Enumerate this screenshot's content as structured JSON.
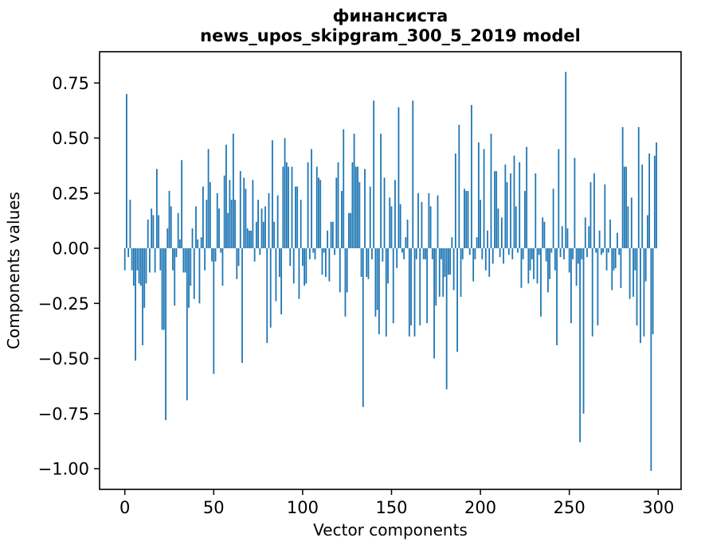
{
  "title": {
    "line1": "финансиста",
    "line2": "news_upos_skipgram_300_5_2019 model"
  },
  "axes": {
    "x_label": "Vector components",
    "y_label": "Components values",
    "x_ticks": [
      {
        "label": "0",
        "value": 0
      },
      {
        "label": "50",
        "value": 50
      },
      {
        "label": "100",
        "value": 100
      },
      {
        "label": "150",
        "value": 150
      },
      {
        "label": "200",
        "value": 200
      },
      {
        "label": "250",
        "value": 250
      },
      {
        "label": "300",
        "value": 300
      }
    ],
    "y_ticks": [
      {
        "label": "0.75",
        "value": 0.75
      },
      {
        "label": "0.50",
        "value": 0.5
      },
      {
        "label": "0.25",
        "value": 0.25
      },
      {
        "label": "0.00",
        "value": 0.0
      },
      {
        "label": "−0.25",
        "value": -0.25
      },
      {
        "label": "−0.50",
        "value": -0.5
      },
      {
        "label": "−0.75",
        "value": -0.75
      },
      {
        "label": "−1.00",
        "value": -1.0
      }
    ]
  },
  "chart_data": {
    "type": "bar",
    "title": "финансиста\nnews_upos_skipgram_300_5_2019 model",
    "xlabel": "Vector components",
    "ylabel": "Components values",
    "xlim": [
      -14.2,
      312.9
    ],
    "ylim": [
      -1.094,
      0.892
    ],
    "grid": false,
    "bar_color": "#1f77b4",
    "x_start_index": 0,
    "values": [
      -0.1,
      0.7,
      -0.04,
      0.22,
      -0.1,
      -0.17,
      -0.51,
      -0.1,
      -0.16,
      -0.17,
      -0.44,
      -0.27,
      -0.16,
      0.13,
      -0.11,
      0.18,
      0.15,
      -0.11,
      0.36,
      0.15,
      -0.1,
      -0.37,
      -0.37,
      -0.78,
      0.09,
      0.26,
      0.19,
      -0.1,
      -0.26,
      -0.04,
      0.16,
      0.04,
      0.4,
      -0.11,
      -0.11,
      -0.69,
      -0.27,
      -0.17,
      0.09,
      -0.23,
      0.19,
      0.04,
      -0.25,
      0.05,
      0.28,
      -0.1,
      0.22,
      0.45,
      0.3,
      -0.06,
      -0.57,
      -0.06,
      0.25,
      0.18,
      -0.02,
      -0.17,
      0.33,
      0.47,
      0.16,
      0.31,
      0.22,
      0.52,
      0.22,
      -0.14,
      -0.08,
      0.35,
      -0.52,
      0.32,
      0.27,
      0.09,
      0.08,
      0.08,
      0.31,
      -0.06,
      0.12,
      0.22,
      -0.03,
      0.18,
      0.12,
      0.19,
      -0.43,
      0.25,
      -0.36,
      0.49,
      0.12,
      -0.24,
      0.24,
      -0.13,
      -0.3,
      0.37,
      0.5,
      0.39,
      0.37,
      -0.08,
      0.37,
      -0.16,
      0.28,
      0.28,
      -0.23,
      0.22,
      -0.08,
      -0.17,
      -0.16,
      0.39,
      -0.05,
      0.45,
      -0.02,
      -0.05,
      0.37,
      0.32,
      0.31,
      -0.12,
      -0.02,
      -0.13,
      0.08,
      -0.15,
      0.12,
      0.12,
      -0.03,
      0.32,
      0.39,
      -0.2,
      0.26,
      0.54,
      -0.31,
      -0.2,
      0.16,
      0.16,
      0.39,
      0.52,
      0.37,
      0.37,
      0.3,
      -0.13,
      -0.72,
      0.36,
      -0.13,
      -0.14,
      0.28,
      -0.05,
      0.67,
      -0.31,
      -0.28,
      -0.39,
      0.52,
      -0.06,
      0.32,
      -0.4,
      -0.16,
      0.23,
      0.19,
      -0.34,
      0.31,
      -0.09,
      0.64,
      0.2,
      -0.02,
      -0.05,
      0.05,
      0.13,
      -0.4,
      -0.35,
      0.67,
      -0.4,
      -0.05,
      0.25,
      -0.35,
      0.21,
      -0.05,
      -0.05,
      -0.34,
      0.25,
      0.19,
      -0.05,
      -0.5,
      -0.26,
      0.24,
      -0.22,
      -0.05,
      -0.22,
      -0.13,
      -0.64,
      -0.12,
      -0.12,
      0.05,
      -0.19,
      0.43,
      -0.47,
      0.56,
      -0.22,
      -0.05,
      0.27,
      0.26,
      0.26,
      -0.03,
      0.65,
      -0.15,
      -0.05,
      0.05,
      0.48,
      0.22,
      -0.05,
      0.45,
      -0.1,
      0.08,
      -0.13,
      0.52,
      -0.07,
      0.35,
      0.35,
      0.18,
      -0.04,
      0.14,
      -0.07,
      0.38,
      0.3,
      -0.03,
      0.34,
      -0.05,
      0.42,
      0.19,
      -0.02,
      0.39,
      -0.18,
      -0.05,
      0.26,
      0.46,
      -0.16,
      -0.1,
      -0.05,
      -0.14,
      0.34,
      -0.16,
      -0.03,
      -0.31,
      0.14,
      0.12,
      -0.06,
      -0.2,
      -0.14,
      -0.02,
      0.27,
      -0.1,
      -0.44,
      0.45,
      -0.04,
      0.1,
      -0.05,
      0.8,
      0.09,
      -0.11,
      -0.34,
      -0.05,
      0.41,
      -0.17,
      -0.07,
      -0.88,
      -0.05,
      -0.75,
      0.14,
      -0.04,
      0.1,
      0.3,
      -0.4,
      0.34,
      -0.02,
      -0.35,
      0.08,
      -0.03,
      -0.02,
      0.29,
      -0.1,
      -0.02,
      0.13,
      -0.19,
      -0.1,
      -0.09,
      0.07,
      -0.03,
      -0.18,
      0.55,
      0.37,
      0.37,
      0.19,
      -0.23,
      0.23,
      -0.22,
      -0.1,
      -0.35,
      0.55,
      -0.43,
      0.38,
      -0.4,
      -0.15,
      0.15,
      0.43,
      -1.01,
      -0.39,
      0.42,
      0.48
    ]
  },
  "colors": {
    "bar": "#1f77b4",
    "axis": "#000000",
    "background": "#ffffff"
  }
}
